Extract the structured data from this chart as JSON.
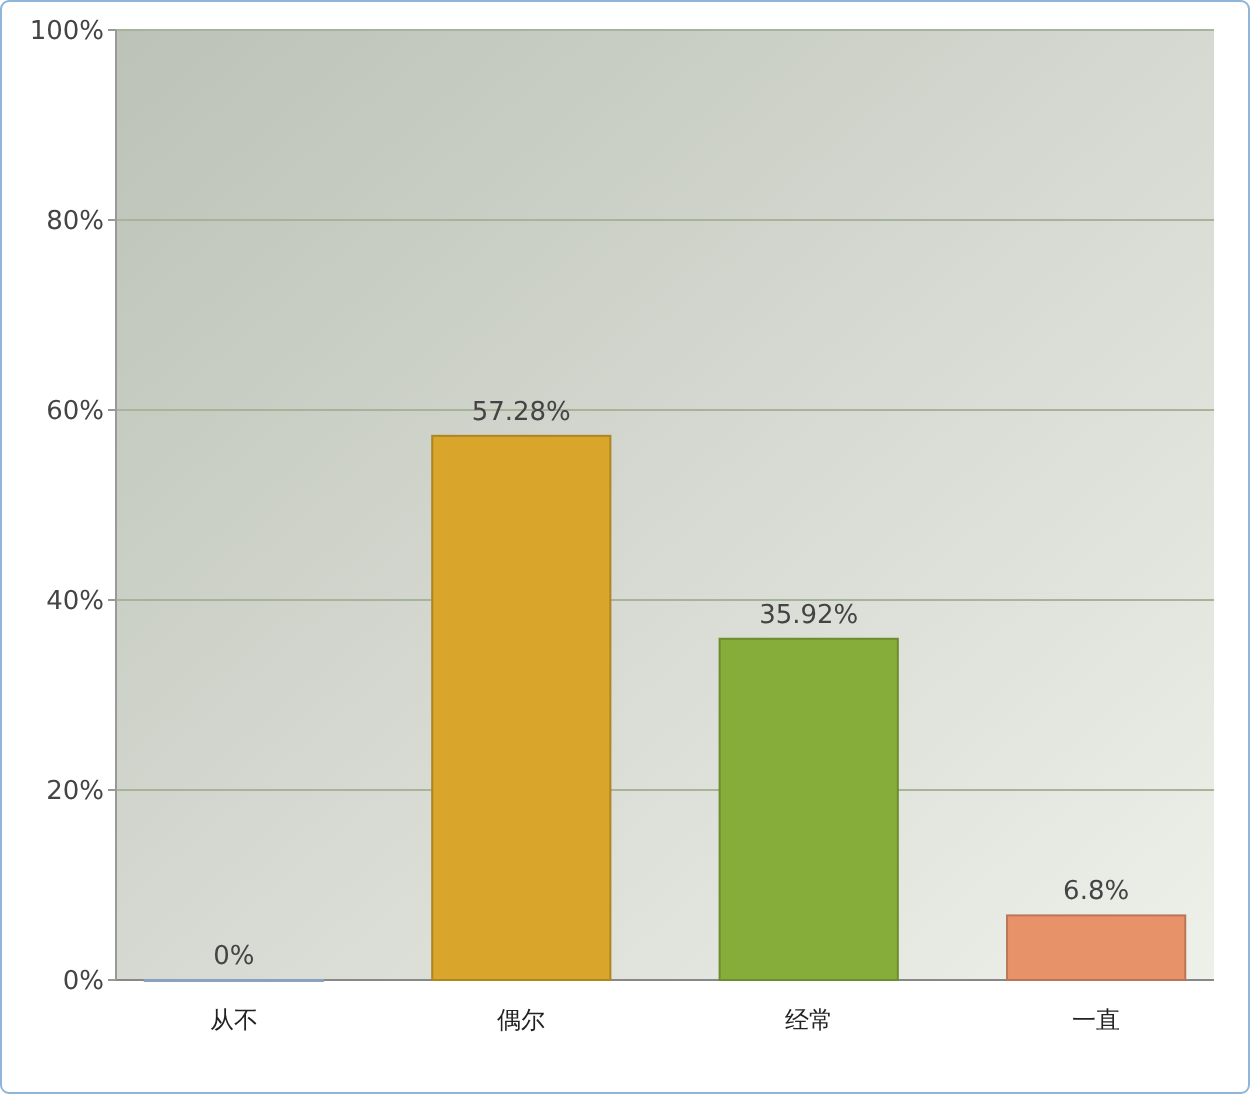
{
  "chart_data": {
    "type": "bar",
    "categories": [
      "从不",
      "偶尔",
      "经常",
      "一直"
    ],
    "values": [
      0,
      57.28,
      35.92,
      6.8
    ],
    "colors": [
      "#a9c9ec",
      "#d9a52a",
      "#86ad3a",
      "#e8926a"
    ],
    "value_labels": [
      "0%",
      "57.28%",
      "35.92%",
      "6.8%"
    ],
    "ylim": [
      0,
      100
    ],
    "yticks": [
      {
        "value": 0,
        "label": "0%"
      },
      {
        "value": 20,
        "label": "20%"
      },
      {
        "value": 40,
        "label": "40%"
      },
      {
        "value": 60,
        "label": "60%"
      },
      {
        "value": 80,
        "label": "80%"
      },
      {
        "value": 100,
        "label": "100%"
      }
    ],
    "grid": "y"
  }
}
